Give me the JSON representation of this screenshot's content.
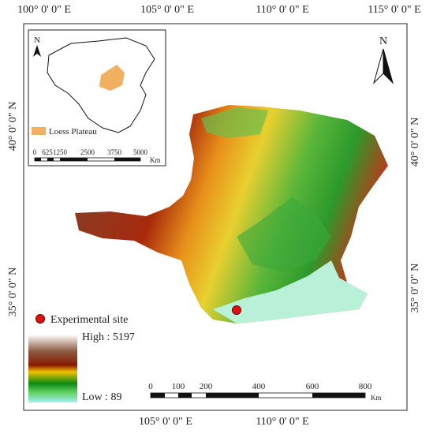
{
  "graticule": {
    "top": [
      "100° 0' 0\" E",
      "105° 0' 0\" E",
      "110° 0' 0\" E",
      "115° 0' 0\" E"
    ],
    "bottom": [
      "105° 0' 0\" E",
      "110° 0' 0\" E"
    ],
    "left": [
      "40° 0' 0\" N",
      "35° 0' 0\" N"
    ],
    "right": [
      "40° 0' 0\" N",
      "35° 0' 0\" N"
    ]
  },
  "north_arrow": "N",
  "inset": {
    "north_arrow": "N",
    "legend_label": "Loess Plateau",
    "scale_labels": [
      "0",
      "625",
      "1250",
      "2500",
      "3750",
      "5000"
    ],
    "scale_unit": "Km"
  },
  "legend": {
    "site_label": "Experimental site",
    "high_label": "High : 5197",
    "low_label": "Low : 89"
  },
  "scale_bar": {
    "labels": [
      "0",
      "100",
      "200",
      "400",
      "600",
      "800"
    ],
    "unit": "Km"
  }
}
